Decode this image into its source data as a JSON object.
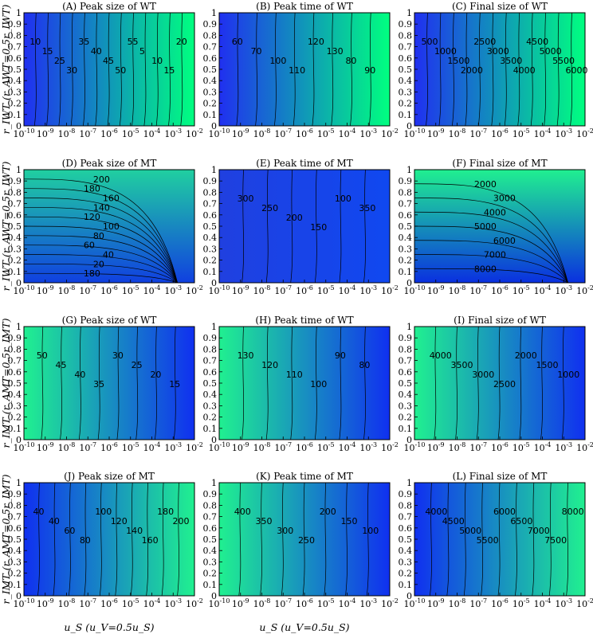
{
  "chart_data": [
    {
      "id": "A",
      "type": "heatmap",
      "title": "(A) Peak size of WT",
      "row": 0,
      "col": 0,
      "colors": [
        "#2030f0",
        "#00ff80"
      ],
      "grad": "horizontal",
      "contour_labels": [
        "10",
        "15",
        "25",
        "30",
        "35",
        "40",
        "45",
        "50",
        "55",
        "5",
        "10",
        "15",
        "20"
      ]
    },
    {
      "id": "B",
      "type": "heatmap",
      "title": "(B) Peak time of WT",
      "row": 0,
      "col": 1,
      "colors": [
        "#2030f0",
        "#00ff80"
      ],
      "grad": "horizontal",
      "contour_labels": [
        "60",
        "70",
        "100",
        "110",
        "120",
        "130",
        "80",
        "90"
      ]
    },
    {
      "id": "C",
      "type": "heatmap",
      "title": "(C) Final size of WT",
      "row": 0,
      "col": 2,
      "colors": [
        "#2030f0",
        "#00ff80"
      ],
      "grad": "horizontal",
      "contour_labels": [
        "500",
        "1000",
        "1500",
        "2000",
        "2500",
        "3000",
        "3500",
        "4000",
        "4500",
        "5000",
        "5500",
        "6000"
      ]
    },
    {
      "id": "D",
      "type": "heatmap",
      "title": "(D) Peak size of MT",
      "row": 1,
      "col": 0,
      "colors": [
        "#1040e0",
        "#20d0a0"
      ],
      "grad": "vertical",
      "contour_labels": [
        "180",
        "20",
        "40",
        "60",
        "80",
        "100",
        "120",
        "140",
        "160",
        "180",
        "200"
      ]
    },
    {
      "id": "E",
      "type": "heatmap",
      "title": "(E) Peak time of MT",
      "row": 1,
      "col": 1,
      "colors": [
        "#2040e0",
        "#1048f0"
      ],
      "grad": "horizontal",
      "contour_labels": [
        "300",
        "250",
        "200",
        "150",
        "100",
        "350"
      ]
    },
    {
      "id": "F",
      "type": "heatmap",
      "title": "(F) Final size of MT",
      "row": 1,
      "col": 2,
      "colors": [
        "#0a30e0",
        "#20f090"
      ],
      "grad": "vertical",
      "contour_labels": [
        "8000",
        "7000",
        "6000",
        "5000",
        "4000",
        "3000",
        "2000"
      ]
    },
    {
      "id": "G",
      "type": "heatmap",
      "title": "(G) Peak size of WT",
      "row": 2,
      "col": 0,
      "colors": [
        "#20f090",
        "#1030f0"
      ],
      "grad": "horizontal",
      "contour_labels": [
        "50",
        "45",
        "40",
        "35",
        "30",
        "25",
        "20",
        "15"
      ]
    },
    {
      "id": "H",
      "type": "heatmap",
      "title": "(H) Peak time of WT",
      "row": 2,
      "col": 1,
      "colors": [
        "#20f090",
        "#1030f0"
      ],
      "grad": "horizontal",
      "contour_labels": [
        "130",
        "120",
        "110",
        "100",
        "90",
        "80"
      ]
    },
    {
      "id": "I",
      "type": "heatmap",
      "title": "(I) Final size of WT",
      "row": 2,
      "col": 2,
      "colors": [
        "#20f090",
        "#1030f0"
      ],
      "grad": "horizontal",
      "contour_labels": [
        "4000",
        "3500",
        "3000",
        "2500",
        "2000",
        "1500",
        "1000"
      ]
    },
    {
      "id": "J",
      "type": "heatmap",
      "title": "(J) Peak size of MT",
      "row": 3,
      "col": 0,
      "colors": [
        "#1030f0",
        "#20f090"
      ],
      "grad": "horizontal",
      "contour_labels": [
        "40",
        "40",
        "60",
        "80",
        "100",
        "120",
        "140",
        "160",
        "180",
        "200"
      ]
    },
    {
      "id": "K",
      "type": "heatmap",
      "title": "(K) Peak time of MT",
      "row": 3,
      "col": 1,
      "colors": [
        "#20f090",
        "#1030f0"
      ],
      "grad": "horizontal",
      "contour_labels": [
        "400",
        "350",
        "300",
        "250",
        "200",
        "150",
        "100"
      ]
    },
    {
      "id": "L",
      "type": "heatmap",
      "title": "(L) Final size of MT",
      "row": 3,
      "col": 2,
      "colors": [
        "#1030f0",
        "#20f090"
      ],
      "grad": "horizontal",
      "contour_labels": [
        "4000",
        "4500",
        "5000",
        "5500",
        "6000",
        "6500",
        "7000",
        "7500",
        "8000"
      ]
    }
  ],
  "x_tick_labels": [
    "-10",
    "-9",
    "-8",
    "-7",
    "-6",
    "-5",
    "-4",
    "-3",
    "-2"
  ],
  "y_tick_labels": [
    "0",
    "0.1",
    "0.2",
    "0.3",
    "0.4",
    "0.5",
    "0.6",
    "0.7",
    "0.8",
    "0.9",
    "1"
  ],
  "y_axis_labels": [
    "r_IWT (r_AWT=0.5r_IWT)",
    "r_IWT (r_AWT=0.5r_IWT)",
    "r_IMT (r_AMT=0.5r_IMT)",
    "r_IMT (r_AMT=0.5r_IMT)"
  ],
  "x_axis_label": "u_S (u_V=0.5u_S)"
}
